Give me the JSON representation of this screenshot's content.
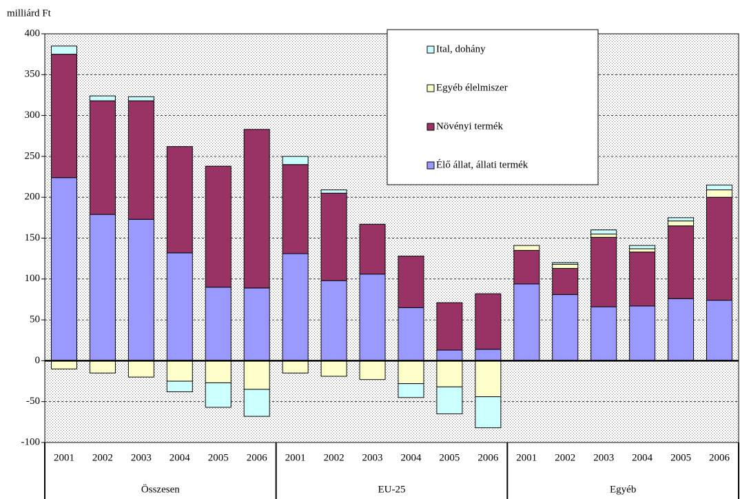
{
  "chart_data": {
    "type": "bar",
    "stacked": true,
    "y_label": "milliárd Ft",
    "groups": [
      {
        "name": "Összesen",
        "categories": [
          "2001",
          "2002",
          "2003",
          "2004",
          "2005",
          "2006"
        ]
      },
      {
        "name": "EU-25",
        "categories": [
          "2001",
          "2002",
          "2003",
          "2004",
          "2005",
          "2006"
        ]
      },
      {
        "name": "Egyéb",
        "categories": [
          "2001",
          "2002",
          "2003",
          "2004",
          "2005",
          "2006"
        ]
      }
    ],
    "series": [
      {
        "name": "Élő állat, állati termék",
        "color": "#9999ff",
        "values": [
          224,
          179,
          173,
          132,
          90,
          89,
          131,
          98,
          106,
          65,
          13,
          14,
          94,
          81,
          66,
          67,
          76,
          74
        ]
      },
      {
        "name": "Növényi termék",
        "color": "#993366",
        "values": [
          151,
          139,
          145,
          130,
          148,
          194,
          109,
          107,
          61,
          63,
          58,
          68,
          41,
          32,
          85,
          66,
          89,
          126
        ]
      },
      {
        "name": "Egyéb élelmiszer",
        "color": "#ffffcc",
        "values": [
          -10,
          -15,
          -20,
          -25,
          -27,
          -35,
          -15,
          -19,
          -23,
          -28,
          -32,
          -44,
          6,
          5,
          4,
          4,
          6,
          9
        ]
      },
      {
        "name": "Ital, dohány",
        "color": "#ccffff",
        "values": [
          10,
          6,
          5,
          -13,
          -30,
          -33,
          10,
          4,
          0,
          -17,
          -33,
          -38,
          0,
          2,
          5,
          4,
          4,
          6
        ]
      }
    ],
    "ylim": [
      -100,
      400
    ],
    "yticks": [
      -100,
      -50,
      0,
      50,
      100,
      150,
      200,
      250,
      300,
      350,
      400
    ],
    "grid": true
  }
}
